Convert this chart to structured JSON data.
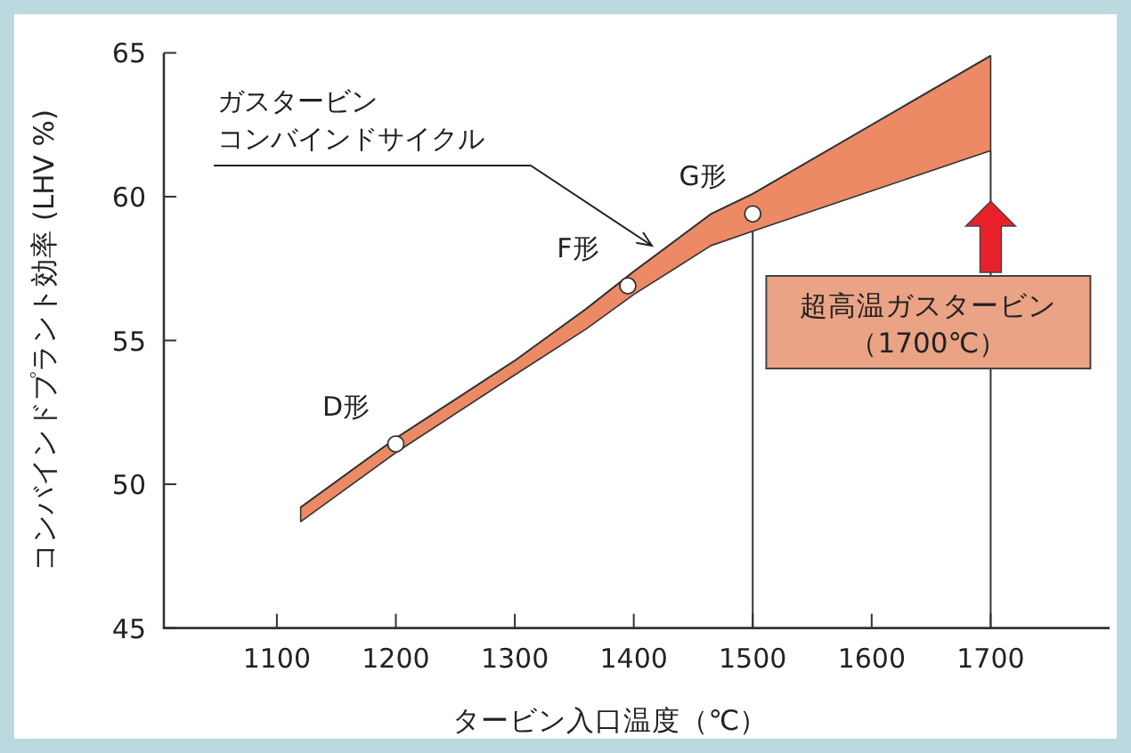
{
  "chart_data": {
    "type": "line",
    "xlabel": "タービン入口温度（℃）",
    "ylabel": "コンバインドプラント効率 (LHV %)",
    "xlim": [
      1005,
      1800
    ],
    "ylim": [
      45,
      65
    ],
    "xticks": [
      1100,
      1200,
      1300,
      1400,
      1500,
      1600,
      1700
    ],
    "yticks": [
      45,
      50,
      55,
      60,
      65
    ],
    "series": [
      {
        "color": "#333333",
        "x": [
          1120,
          1200,
          1300,
          1360,
          1400,
          1465,
          1500,
          1600,
          1700
        ],
        "values": [
          49.2,
          51.6,
          54.3,
          56.1,
          57.4,
          59.4,
          60.1,
          62.5,
          64.9
        ],
        "upper": [
          49.2,
          51.6,
          54.3,
          56.1,
          57.4,
          59.4,
          60.1,
          62.5,
          64.9
        ],
        "lower": [
          48.7,
          51.1,
          53.8,
          55.4,
          56.6,
          58.3,
          58.8,
          60.2,
          61.6
        ]
      },
      {
        "type": "scatter",
        "color": "#ffffff",
        "marker": "circle",
        "x": [
          1200,
          1395,
          1500
        ],
        "values": [
          51.4,
          56.9,
          59.4
        ]
      }
    ],
    "ref_lines": [
      {
        "axis": "x",
        "value": 1500,
        "color": "#333333"
      },
      {
        "axis": "x",
        "value": 1700,
        "color": "#333333"
      }
    ],
    "annotations": [
      {
        "text": "D形",
        "x": 1200,
        "y": 51.4
      },
      {
        "text": "F形",
        "x": 1395,
        "y": 56.9
      },
      {
        "text": "G形",
        "x": 1500,
        "y": 59.4
      },
      "ガスタービン",
      "コンバインドサイクル",
      "超高温ガスタービン",
      "（1700℃）"
    ]
  }
}
